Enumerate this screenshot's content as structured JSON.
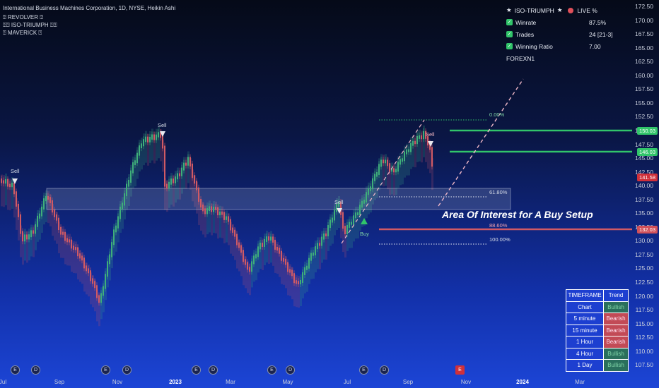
{
  "header": {
    "title": "International Business Machines Corporation, 1D, NYSE, Heikin Ashi",
    "indicators": [
      "⍰ REVOLVER ⍰",
      "⍰⍰ ISO-TRIUMPH ⍰⍰",
      "⍰ MAVERICK ⍰"
    ]
  },
  "stats": {
    "title": "ISO-TRIUMPH",
    "live_label": "LIVE %",
    "rows": [
      {
        "label": "Winrate",
        "value": "87.5%"
      },
      {
        "label": "Trades",
        "value": "24 [21-3]"
      },
      {
        "label": "Winning Ratio",
        "value": "7.00"
      }
    ],
    "footer": "FOREXN1"
  },
  "price_axis": [
    "172.50",
    "170.00",
    "167.50",
    "165.00",
    "162.50",
    "160.00",
    "157.50",
    "155.00",
    "152.50",
    "150.00",
    "147.50",
    "145.00",
    "142.50",
    "140.00",
    "137.50",
    "135.00",
    "132.50",
    "130.00",
    "127.50",
    "125.00",
    "122.50",
    "120.00",
    "117.50",
    "115.00",
    "112.50",
    "110.00",
    "107.50"
  ],
  "price_tags": [
    {
      "label": "150.03",
      "color": "#31c46a"
    },
    {
      "label": "146.03",
      "color": "#31c46a"
    },
    {
      "label": "141.58",
      "color": "#d0303a"
    },
    {
      "label": "132.03",
      "color": "#d0505a"
    }
  ],
  "time_axis": [
    {
      "label": "Jul",
      "bold": false
    },
    {
      "label": "Sep",
      "bold": false
    },
    {
      "label": "Nov",
      "bold": false
    },
    {
      "label": "2023",
      "bold": true
    },
    {
      "label": "Mar",
      "bold": false
    },
    {
      "label": "May",
      "bold": false
    },
    {
      "label": "Jul",
      "bold": false
    },
    {
      "label": "Sep",
      "bold": false
    },
    {
      "label": "Nov",
      "bold": false
    },
    {
      "label": "2024",
      "bold": true
    },
    {
      "label": "Mar",
      "bold": false
    }
  ],
  "events": [
    "E",
    "D",
    "E",
    "D",
    "E",
    "D",
    "E",
    "D",
    "E",
    "D",
    "E"
  ],
  "signals": {
    "sell": "Sell",
    "buy": "Buy"
  },
  "fib_levels": [
    {
      "label": "0.00%"
    },
    {
      "label": "61.80%"
    },
    {
      "label": "88.60%"
    },
    {
      "label": "100.00%"
    }
  ],
  "annotation": "Area Of Interest for A Buy Setup",
  "trend_table": {
    "headers": [
      "TIMEFRAME",
      "Trend"
    ],
    "rows": [
      {
        "tf": "Chart",
        "trend": "Bullish"
      },
      {
        "tf": "5 minute",
        "trend": "Bearish"
      },
      {
        "tf": "15 minute",
        "trend": "Bearish"
      },
      {
        "tf": "1 Hour",
        "trend": "Bearish"
      },
      {
        "tf": "4 Hour",
        "trend": "Bullish"
      },
      {
        "tf": "1 Day",
        "trend": "Bullish"
      }
    ]
  },
  "colors": {
    "bull": "#3fae7a",
    "bear": "#d05a64",
    "accent": "#31c46a"
  }
}
